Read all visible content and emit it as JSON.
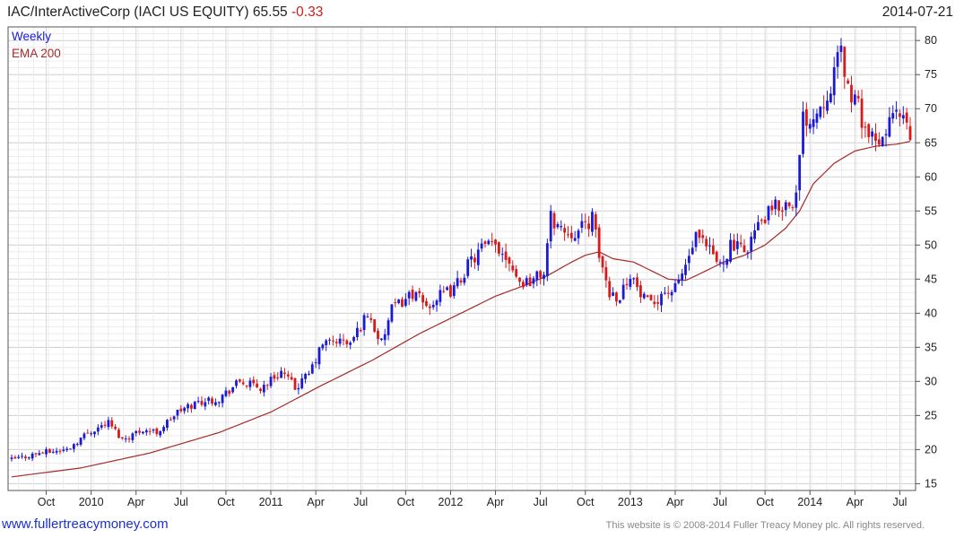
{
  "header": {
    "title": "IAC/InterActiveCorp (IACI US EQUITY) 65.55",
    "change": "-0.33",
    "date": "2014-07-21"
  },
  "footer": {
    "link": "www.fullertreacymoney.com",
    "copyright": "This website is © 2008-2014 Fuller Treacy Money plc. All rights reserved."
  },
  "chart_data": {
    "type": "candlestick",
    "title": "IAC/InterActiveCorp (IACI US EQUITY) 65.55 -0.33",
    "frequency_label": "Weekly",
    "series": [
      {
        "name": "Price",
        "style": "weekly candlesticks",
        "up_color": "#1a1ad6",
        "down_color": "#d91a1a"
      },
      {
        "name": "EMA 200",
        "style": "line",
        "color": "#a52a2a"
      }
    ],
    "legend": [
      "Weekly",
      "EMA 200"
    ],
    "legend_position": "top-left",
    "ylim": [
      14,
      82
    ],
    "yticks": [
      15,
      20,
      25,
      30,
      35,
      40,
      45,
      50,
      55,
      60,
      65,
      70,
      75,
      80
    ],
    "x_tick_labels": [
      "Oct",
      "2010",
      "Apr",
      "Jul",
      "Oct",
      "2011",
      "Apr",
      "Jul",
      "Oct",
      "2012",
      "Apr",
      "Jul",
      "Oct",
      "2013",
      "Apr",
      "Jul",
      "Oct",
      "2014",
      "Apr",
      "Jul"
    ],
    "x_range_weeks": [
      0,
      256
    ],
    "x_tick_weeks": [
      10,
      23,
      36,
      49,
      62,
      75,
      88,
      101,
      114,
      127,
      140,
      153,
      166,
      179,
      192,
      205,
      218,
      231,
      244,
      257
    ],
    "price_keypoints": [
      [
        0,
        18.5
      ],
      [
        8,
        19.5
      ],
      [
        16,
        20.0
      ],
      [
        22,
        22.5
      ],
      [
        28,
        24.0
      ],
      [
        32,
        21.5
      ],
      [
        38,
        23.0
      ],
      [
        42,
        22.5
      ],
      [
        48,
        25.5
      ],
      [
        54,
        27.0
      ],
      [
        60,
        27.5
      ],
      [
        66,
        30.0
      ],
      [
        72,
        29.0
      ],
      [
        78,
        31.5
      ],
      [
        82,
        29.0
      ],
      [
        86,
        31.0
      ],
      [
        90,
        35.5
      ],
      [
        94,
        36.0
      ],
      [
        98,
        35.5
      ],
      [
        103,
        40.0
      ],
      [
        107,
        35.5
      ],
      [
        110,
        40.5
      ],
      [
        116,
        43.0
      ],
      [
        120,
        41.0
      ],
      [
        124,
        42.5
      ],
      [
        128,
        43.5
      ],
      [
        132,
        47.0
      ],
      [
        136,
        49.5
      ],
      [
        140,
        50.0
      ],
      [
        144,
        48.0
      ],
      [
        147,
        44.5
      ],
      [
        151,
        45.0
      ],
      [
        154,
        46.0
      ],
      [
        156,
        54.0
      ],
      [
        160,
        52.0
      ],
      [
        164,
        52.0
      ],
      [
        168,
        54.0
      ],
      [
        170,
        48.5
      ],
      [
        173,
        43.0
      ],
      [
        176,
        42.5
      ],
      [
        179,
        46.0
      ],
      [
        182,
        42.5
      ],
      [
        185,
        41.0
      ],
      [
        188,
        43.0
      ],
      [
        192,
        43.5
      ],
      [
        195,
        47.0
      ],
      [
        198,
        51.0
      ],
      [
        202,
        49.0
      ],
      [
        205,
        47.0
      ],
      [
        208,
        50.0
      ],
      [
        212,
        49.0
      ],
      [
        215,
        52.0
      ],
      [
        218,
        54.0
      ],
      [
        221,
        55.5
      ],
      [
        224,
        56.0
      ],
      [
        227,
        57.0
      ],
      [
        229,
        68.5
      ],
      [
        232,
        69.0
      ],
      [
        235,
        71.5
      ],
      [
        238,
        75.0
      ],
      [
        240,
        78.5
      ],
      [
        242,
        73.0
      ],
      [
        245,
        70.0
      ],
      [
        248,
        66.0
      ],
      [
        251,
        64.0
      ],
      [
        254,
        68.5
      ],
      [
        256,
        69.0
      ],
      [
        258,
        68.0
      ],
      [
        260,
        65.5
      ]
    ],
    "ema_keypoints": [
      [
        0,
        16.0
      ],
      [
        20,
        17.3
      ],
      [
        40,
        19.5
      ],
      [
        60,
        22.5
      ],
      [
        75,
        25.5
      ],
      [
        90,
        29.5
      ],
      [
        104,
        33.0
      ],
      [
        118,
        37.0
      ],
      [
        130,
        40.0
      ],
      [
        140,
        42.5
      ],
      [
        148,
        44.0
      ],
      [
        155,
        45.5
      ],
      [
        162,
        47.5
      ],
      [
        166,
        48.5
      ],
      [
        170,
        49.0
      ],
      [
        174,
        48.0
      ],
      [
        180,
        47.5
      ],
      [
        186,
        46.0
      ],
      [
        190,
        45.0
      ],
      [
        195,
        44.8
      ],
      [
        200,
        46.0
      ],
      [
        206,
        47.5
      ],
      [
        212,
        48.5
      ],
      [
        218,
        50.0
      ],
      [
        224,
        52.5
      ],
      [
        228,
        55.0
      ],
      [
        232,
        59.0
      ],
      [
        238,
        62.0
      ],
      [
        244,
        63.8
      ],
      [
        250,
        64.5
      ],
      [
        256,
        64.8
      ],
      [
        260,
        65.2
      ]
    ]
  }
}
